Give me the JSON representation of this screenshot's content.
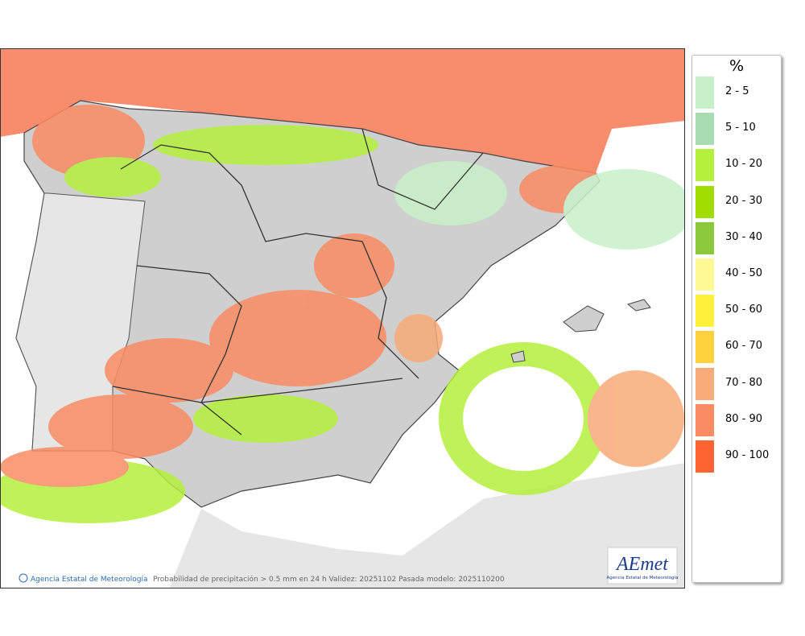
{
  "legend": {
    "title": "%",
    "items": [
      {
        "label": "2 - 5",
        "color": "#c8f0c8"
      },
      {
        "label": "5 - 10",
        "color": "#a8dcb0"
      },
      {
        "label": "10 - 20",
        "color": "#b4f03c"
      },
      {
        "label": "20 - 30",
        "color": "#a0dc00"
      },
      {
        "label": "30 - 40",
        "color": "#8cc83c"
      },
      {
        "label": "40 - 50",
        "color": "#fffa96"
      },
      {
        "label": "50 - 60",
        "color": "#fff03c"
      },
      {
        "label": "60 - 70",
        "color": "#ffd23c"
      },
      {
        "label": "70 - 80",
        "color": "#f8aa78"
      },
      {
        "label": "80 - 90",
        "color": "#fa8c64"
      },
      {
        "label": "90 - 100",
        "color": "#ff6432"
      }
    ]
  },
  "footer": {
    "credit": "Agencia Estatal de Meteorología",
    "caption": "Probabilidad de precipitación > 0.5 mm en 24 h Validez: 20251102 Pasada modelo: 2025110200"
  },
  "logo": {
    "name": "AEmet",
    "subtitle": "Agencia Estatal de Meteorología"
  }
}
